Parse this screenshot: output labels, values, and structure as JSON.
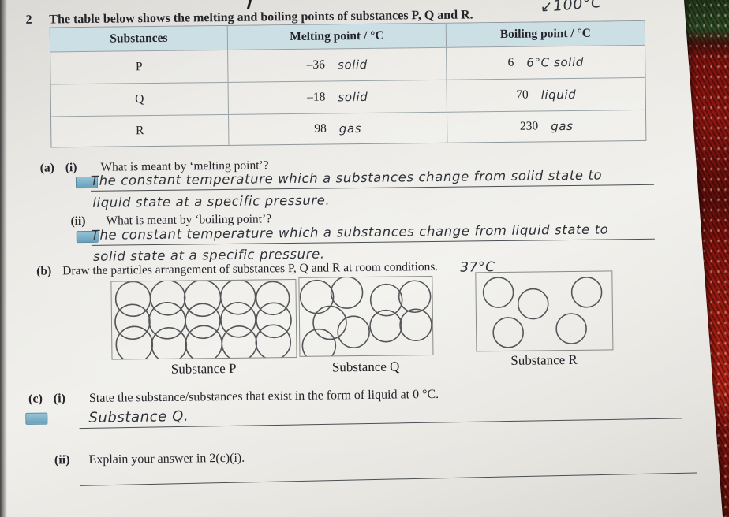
{
  "colors": {
    "paper": "#e9e7e2",
    "table_header_bg": "#cbdfe5",
    "fabric_red": "#8e1712",
    "fabric_green": "#2a4c24",
    "handwriting_ink": "#2e333a",
    "stamp_blue": "#6fa9c4"
  },
  "header": {
    "question_number": "2",
    "question_text": "The table below shows the melting and boiling points of substances P, Q and R.",
    "handwritten_note": "↙100°C"
  },
  "table": {
    "headers": [
      "Substances",
      "Melting point / °C",
      "Boiling point / °C"
    ],
    "rows": [
      {
        "substance": "P",
        "melting": "–36",
        "melting_note": "solid",
        "boiling": "6",
        "boiling_note": "6°C  solid"
      },
      {
        "substance": "Q",
        "melting": "–18",
        "melting_note": "solid",
        "boiling": "70",
        "boiling_note": "liquid"
      },
      {
        "substance": "R",
        "melting": "98",
        "melting_note": "gas",
        "boiling": "230",
        "boiling_note": "gas"
      }
    ]
  },
  "sections": {
    "a": {
      "label": "(a)",
      "i": {
        "label": "(i)",
        "question": "What is meant by ‘melting point’?",
        "answer_line1": "The constant temperature which a substances change from solid state to",
        "answer_line2": "liquid state at a specific pressure."
      },
      "ii": {
        "label": "(ii)",
        "question": "What is meant by ‘boiling point’?",
        "answer_line1": "The constant temperature which a substances change from liquid state to",
        "answer_line2": "solid state at a specific pressure."
      }
    },
    "b": {
      "label": "(b)",
      "question": "Draw the particles arrangement of substances P, Q and R at room conditions.",
      "handwritten_note": "37°C"
    },
    "c": {
      "label": "(c)",
      "i": {
        "label": "(i)",
        "question": "State the substance/substances that exist in the form of liquid at 0 °C.",
        "answer": "Substance Q."
      },
      "ii": {
        "label": "(ii)",
        "question": "Explain your answer in 2(c)(i)."
      }
    }
  },
  "diagrams": {
    "p": {
      "label": "Substance P",
      "circles": [
        [
          27,
          22,
          22
        ],
        [
          71,
          21,
          22
        ],
        [
          115,
          22,
          23
        ],
        [
          160,
          21,
          22
        ],
        [
          204,
          23,
          21
        ],
        [
          26,
          51,
          22
        ],
        [
          70,
          50,
          23
        ],
        [
          115,
          51,
          22
        ],
        [
          160,
          50,
          22
        ],
        [
          205,
          51,
          22
        ],
        [
          28,
          80,
          23
        ],
        [
          72,
          81,
          22
        ],
        [
          116,
          80,
          23
        ],
        [
          161,
          80,
          22
        ],
        [
          204,
          79,
          22
        ]
      ]
    },
    "q": {
      "label": "Substance Q",
      "circles": [
        [
          22,
          24,
          21
        ],
        [
          60,
          19,
          20
        ],
        [
          38,
          57,
          21
        ],
        [
          24,
          86,
          21
        ],
        [
          68,
          69,
          20
        ],
        [
          110,
          29,
          20
        ],
        [
          146,
          25,
          20
        ],
        [
          109,
          62,
          20
        ],
        [
          147,
          61,
          20
        ]
      ]
    },
    "r": {
      "label": "Substance R",
      "circles": [
        [
          28,
          25,
          19
        ],
        [
          72,
          40,
          19
        ],
        [
          140,
          26,
          19
        ],
        [
          40,
          76,
          19
        ],
        [
          120,
          72,
          19
        ]
      ]
    }
  }
}
